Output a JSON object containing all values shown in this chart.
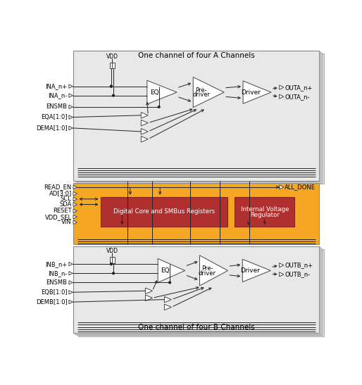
{
  "channel_A_title": "One channel of four A Channels",
  "channel_B_title": "One channel of four B Channels",
  "inputs_A": [
    "INA_n+",
    "INA_n-",
    "ENSMB",
    "EQA[1:0]",
    "DEMA[1:0]"
  ],
  "inputs_mid": [
    "READ_EN",
    "AD[3:0]",
    "SCL",
    "SDA",
    "RESET",
    "VDD_SEL",
    "VIN"
  ],
  "inputs_B": [
    "INB_n+",
    "INB_n-",
    "ENSMB",
    "EQB[1:0]",
    "DEMB[1:0]"
  ],
  "outputs_A": [
    "OUTA_n+",
    "OUTA_n-"
  ],
  "outputs_B": [
    "OUTB_n+",
    "OUTB_n-"
  ],
  "output_mid": "ALL_DONE",
  "chan_bg": "#e8e8e8",
  "chan_border": "#888888",
  "mid_bg": "#f5a623",
  "mid_border": "#888888",
  "dc_bg": "#b03030",
  "vr_bg": "#b03030",
  "white": "#ffffff",
  "black": "#000000",
  "dark": "#222222"
}
